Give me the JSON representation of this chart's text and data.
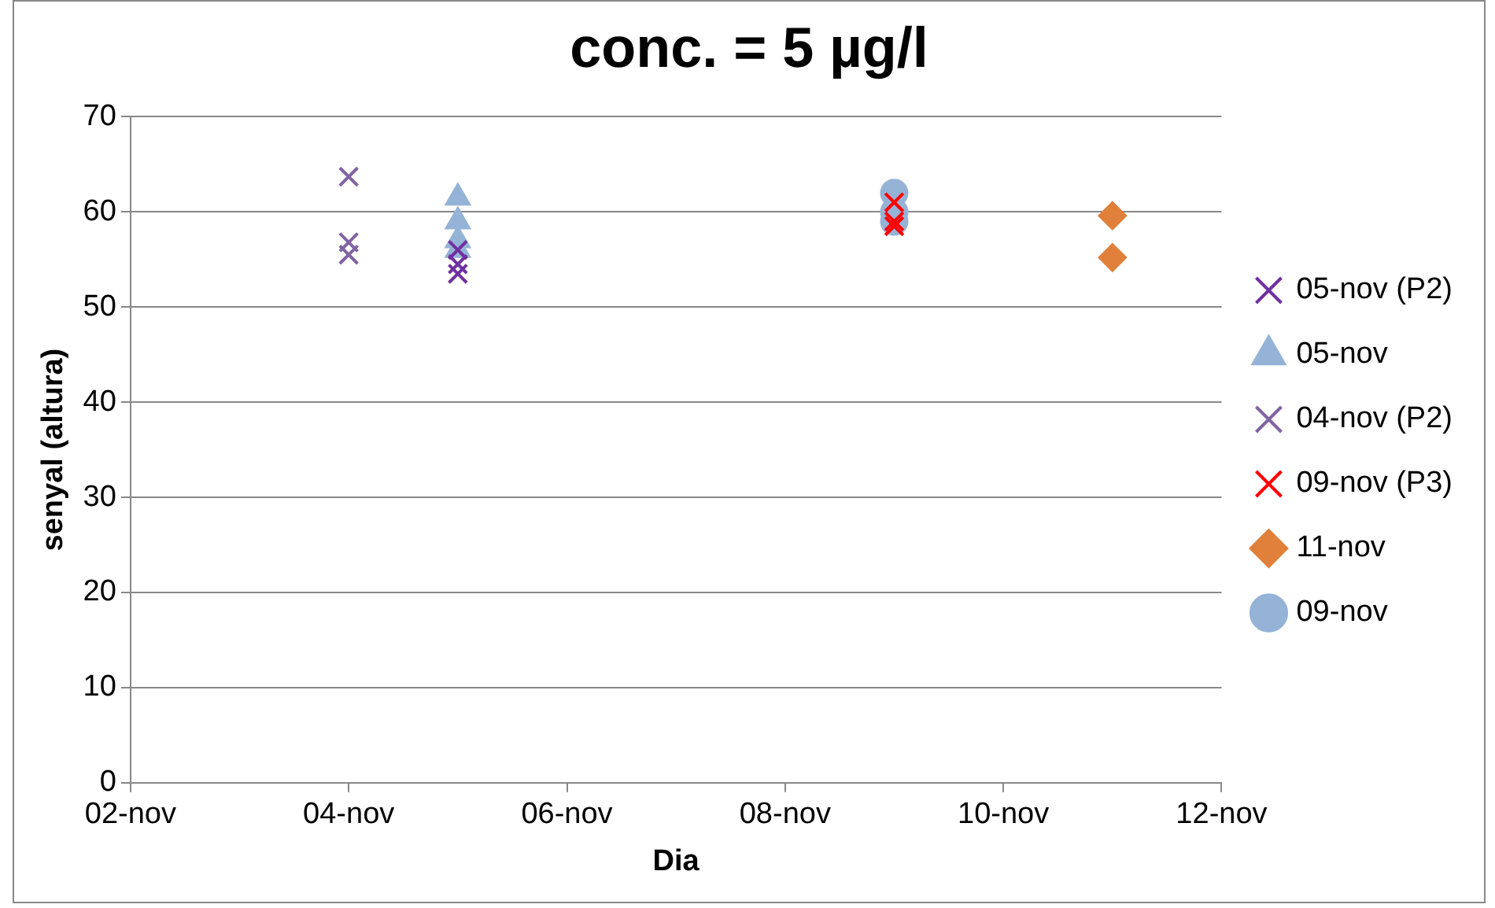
{
  "chart_data": {
    "type": "scatter",
    "title": "conc. = 5 µg/l",
    "xlabel": "Dia",
    "ylabel": "senyal (altura)",
    "xlim": [
      "--11-02",
      "--11-12"
    ],
    "xticks": [
      {
        "value": "--11-02",
        "label": "02-nov"
      },
      {
        "value": "--11-04",
        "label": "04-nov"
      },
      {
        "value": "--11-06",
        "label": "06-nov"
      },
      {
        "value": "--11-08",
        "label": "08-nov"
      },
      {
        "value": "--11-10",
        "label": "10-nov"
      },
      {
        "value": "--11-12",
        "label": "12-nov"
      }
    ],
    "ylim": [
      0,
      70
    ],
    "yticks": [
      0,
      10,
      20,
      30,
      40,
      50,
      60,
      70
    ],
    "grid": "y",
    "legend": "right",
    "series": [
      {
        "name": "05-nov (P2)",
        "color": "#7030a0",
        "marker": "cross",
        "x": [
          "--11-05",
          "--11-05",
          "--11-05"
        ],
        "values": [
          56,
          54.5,
          53.5
        ]
      },
      {
        "name": "05-nov",
        "color": "#95b3d7",
        "marker": "triangle",
        "x": [
          "--11-05",
          "--11-05",
          "--11-05",
          "--11-05"
        ],
        "values": [
          61.5,
          59,
          57,
          56
        ]
      },
      {
        "name": "04-nov (P2)",
        "color": "#8064a2",
        "marker": "cross",
        "x": [
          "--11-04",
          "--11-04",
          "--11-04"
        ],
        "values": [
          63.7,
          56.8,
          55.5
        ]
      },
      {
        "name": "09-nov (P3)",
        "color": "#ff0000",
        "marker": "cross",
        "x": [
          "--11-09",
          "--11-09",
          "--11-09"
        ],
        "values": [
          61,
          59,
          58.5
        ]
      },
      {
        "name": "11-nov",
        "color": "#e0803a",
        "marker": "diamond",
        "x": [
          "--11-11",
          "--11-11"
        ],
        "values": [
          59.6,
          55.2
        ]
      },
      {
        "name": "09-nov",
        "color": "#95b3d7",
        "marker": "circle",
        "x": [
          "--11-09",
          "--11-09",
          "--11-09"
        ],
        "values": [
          62,
          60,
          59
        ]
      }
    ]
  }
}
